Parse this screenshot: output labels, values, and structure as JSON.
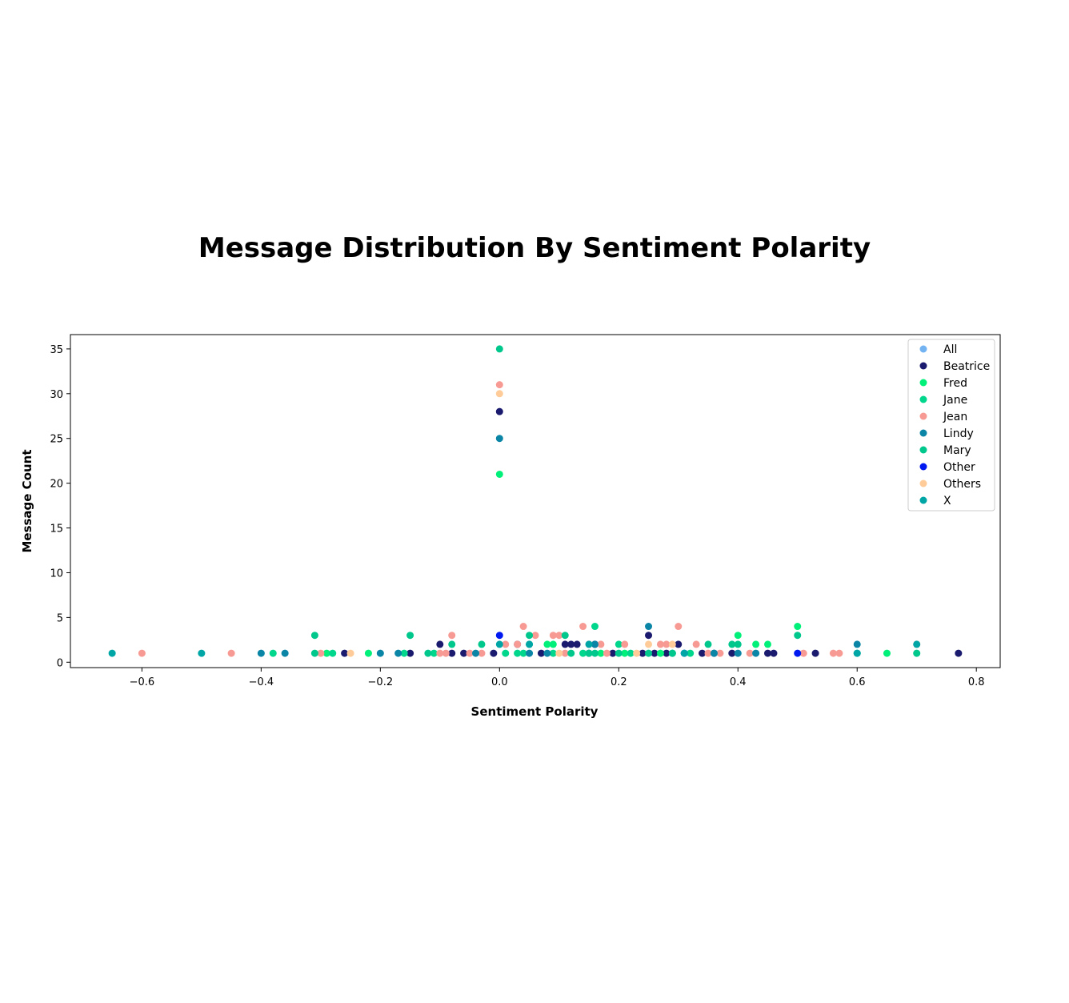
{
  "chart_data": {
    "type": "scatter",
    "title": "Message Distribution By Sentiment Polarity",
    "xlabel": "Sentiment Polarity",
    "ylabel": "Message Count",
    "xlim": [
      -0.72,
      0.84
    ],
    "ylim": [
      -0.6,
      36.6
    ],
    "xticks": [
      -0.6,
      -0.4,
      -0.2,
      0.0,
      0.2,
      0.4,
      0.6,
      0.8
    ],
    "xtick_labels": [
      "−0.6",
      "−0.4",
      "−0.2",
      "0.0",
      "0.2",
      "0.4",
      "0.6",
      "0.8"
    ],
    "yticks": [
      0,
      5,
      10,
      15,
      20,
      25,
      30,
      35
    ],
    "ytick_labels": [
      "0",
      "5",
      "10",
      "15",
      "20",
      "25",
      "30",
      "35"
    ],
    "grid": false,
    "legend_position": "top-right",
    "series": [
      {
        "name": "All",
        "color": "#74b3f2",
        "points": []
      },
      {
        "name": "Beatrice",
        "color": "#1a1a6e",
        "points": [
          [
            -0.26,
            1
          ],
          [
            -0.15,
            1
          ],
          [
            -0.1,
            2
          ],
          [
            -0.08,
            1
          ],
          [
            -0.06,
            1
          ],
          [
            -0.01,
            1
          ],
          [
            0.0,
            28
          ],
          [
            0.03,
            2
          ],
          [
            0.07,
            1
          ],
          [
            0.11,
            2
          ],
          [
            0.12,
            2
          ],
          [
            0.13,
            2
          ],
          [
            0.15,
            1
          ],
          [
            0.16,
            2
          ],
          [
            0.19,
            1
          ],
          [
            0.24,
            1
          ],
          [
            0.25,
            3
          ],
          [
            0.26,
            1
          ],
          [
            0.28,
            1
          ],
          [
            0.3,
            2
          ],
          [
            0.34,
            1
          ],
          [
            0.36,
            1
          ],
          [
            0.39,
            1
          ],
          [
            0.45,
            1
          ],
          [
            0.46,
            1
          ],
          [
            0.53,
            1
          ],
          [
            0.77,
            1
          ]
        ]
      },
      {
        "name": "Fred",
        "color": "#00f07a",
        "points": [
          [
            -0.29,
            1
          ],
          [
            -0.22,
            1
          ],
          [
            0.0,
            21
          ],
          [
            0.08,
            2
          ],
          [
            0.09,
            2
          ],
          [
            0.17,
            1
          ],
          [
            0.21,
            1
          ],
          [
            0.27,
            1
          ],
          [
            0.4,
            3
          ],
          [
            0.43,
            2
          ],
          [
            0.45,
            2
          ],
          [
            0.5,
            4
          ],
          [
            0.65,
            1
          ]
        ]
      },
      {
        "name": "Jane",
        "color": "#00d68c",
        "points": [
          [
            -0.38,
            1
          ],
          [
            -0.28,
            1
          ],
          [
            -0.16,
            1
          ],
          [
            -0.11,
            1
          ],
          [
            0.01,
            1
          ],
          [
            0.03,
            1
          ],
          [
            0.04,
            1
          ],
          [
            0.09,
            1
          ],
          [
            0.14,
            1
          ],
          [
            0.16,
            4
          ],
          [
            0.2,
            2
          ],
          [
            0.22,
            1
          ],
          [
            0.32,
            1
          ]
        ]
      },
      {
        "name": "Jean",
        "color": "#f89a94",
        "points": [
          [
            -0.6,
            1
          ],
          [
            -0.45,
            1
          ],
          [
            -0.3,
            1
          ],
          [
            -0.1,
            1
          ],
          [
            -0.09,
            1
          ],
          [
            -0.08,
            3
          ],
          [
            -0.05,
            1
          ],
          [
            -0.03,
            1
          ],
          [
            0.0,
            31
          ],
          [
            0.01,
            2
          ],
          [
            0.03,
            2
          ],
          [
            0.04,
            4
          ],
          [
            0.06,
            3
          ],
          [
            0.09,
            3
          ],
          [
            0.1,
            3
          ],
          [
            0.11,
            1
          ],
          [
            0.14,
            4
          ],
          [
            0.15,
            2
          ],
          [
            0.17,
            2
          ],
          [
            0.18,
            1
          ],
          [
            0.21,
            2
          ],
          [
            0.27,
            2
          ],
          [
            0.28,
            2
          ],
          [
            0.3,
            4
          ],
          [
            0.33,
            2
          ],
          [
            0.35,
            1
          ],
          [
            0.37,
            1
          ],
          [
            0.42,
            1
          ],
          [
            0.51,
            1
          ],
          [
            0.56,
            1
          ],
          [
            0.57,
            1
          ],
          [
            0.7,
            2
          ]
        ]
      },
      {
        "name": "Lindy",
        "color": "#0a85a6",
        "points": [
          [
            -0.4,
            1
          ],
          [
            -0.36,
            1
          ],
          [
            -0.2,
            1
          ],
          [
            -0.17,
            1
          ],
          [
            -0.04,
            1
          ],
          [
            0.0,
            25
          ],
          [
            0.05,
            1
          ],
          [
            0.08,
            1
          ],
          [
            0.16,
            2
          ],
          [
            0.25,
            4
          ],
          [
            0.29,
            1
          ],
          [
            0.36,
            1
          ],
          [
            0.4,
            1
          ],
          [
            0.43,
            1
          ],
          [
            0.6,
            2
          ]
        ]
      },
      {
        "name": "Mary",
        "color": "#00c78c",
        "points": [
          [
            -0.31,
            3
          ],
          [
            -0.31,
            1
          ],
          [
            -0.15,
            3
          ],
          [
            -0.12,
            1
          ],
          [
            -0.08,
            2
          ],
          [
            -0.03,
            2
          ],
          [
            0.0,
            35
          ],
          [
            0.05,
            3
          ],
          [
            0.05,
            2
          ],
          [
            0.11,
            3
          ],
          [
            0.12,
            1
          ],
          [
            0.15,
            1
          ],
          [
            0.16,
            1
          ],
          [
            0.2,
            1
          ],
          [
            0.25,
            1
          ],
          [
            0.29,
            1
          ],
          [
            0.35,
            2
          ],
          [
            0.39,
            2
          ],
          [
            0.4,
            2
          ],
          [
            0.5,
            3
          ],
          [
            0.6,
            1
          ],
          [
            0.7,
            1
          ]
        ]
      },
      {
        "name": "Other",
        "color": "#0019f0",
        "points": [
          [
            0.0,
            3
          ],
          [
            0.31,
            1
          ],
          [
            0.5,
            1
          ]
        ]
      },
      {
        "name": "Others",
        "color": "#ffcc99",
        "points": [
          [
            -0.25,
            1
          ],
          [
            0.0,
            30
          ],
          [
            0.1,
            1
          ],
          [
            0.23,
            1
          ],
          [
            0.25,
            2
          ],
          [
            0.29,
            2
          ]
        ]
      },
      {
        "name": "X",
        "color": "#00a6a6",
        "points": [
          [
            -0.65,
            1
          ],
          [
            -0.5,
            1
          ],
          [
            0.0,
            2
          ],
          [
            0.05,
            2
          ],
          [
            0.15,
            2
          ],
          [
            0.31,
            1
          ],
          [
            0.6,
            1
          ],
          [
            0.7,
            2
          ]
        ]
      }
    ]
  }
}
